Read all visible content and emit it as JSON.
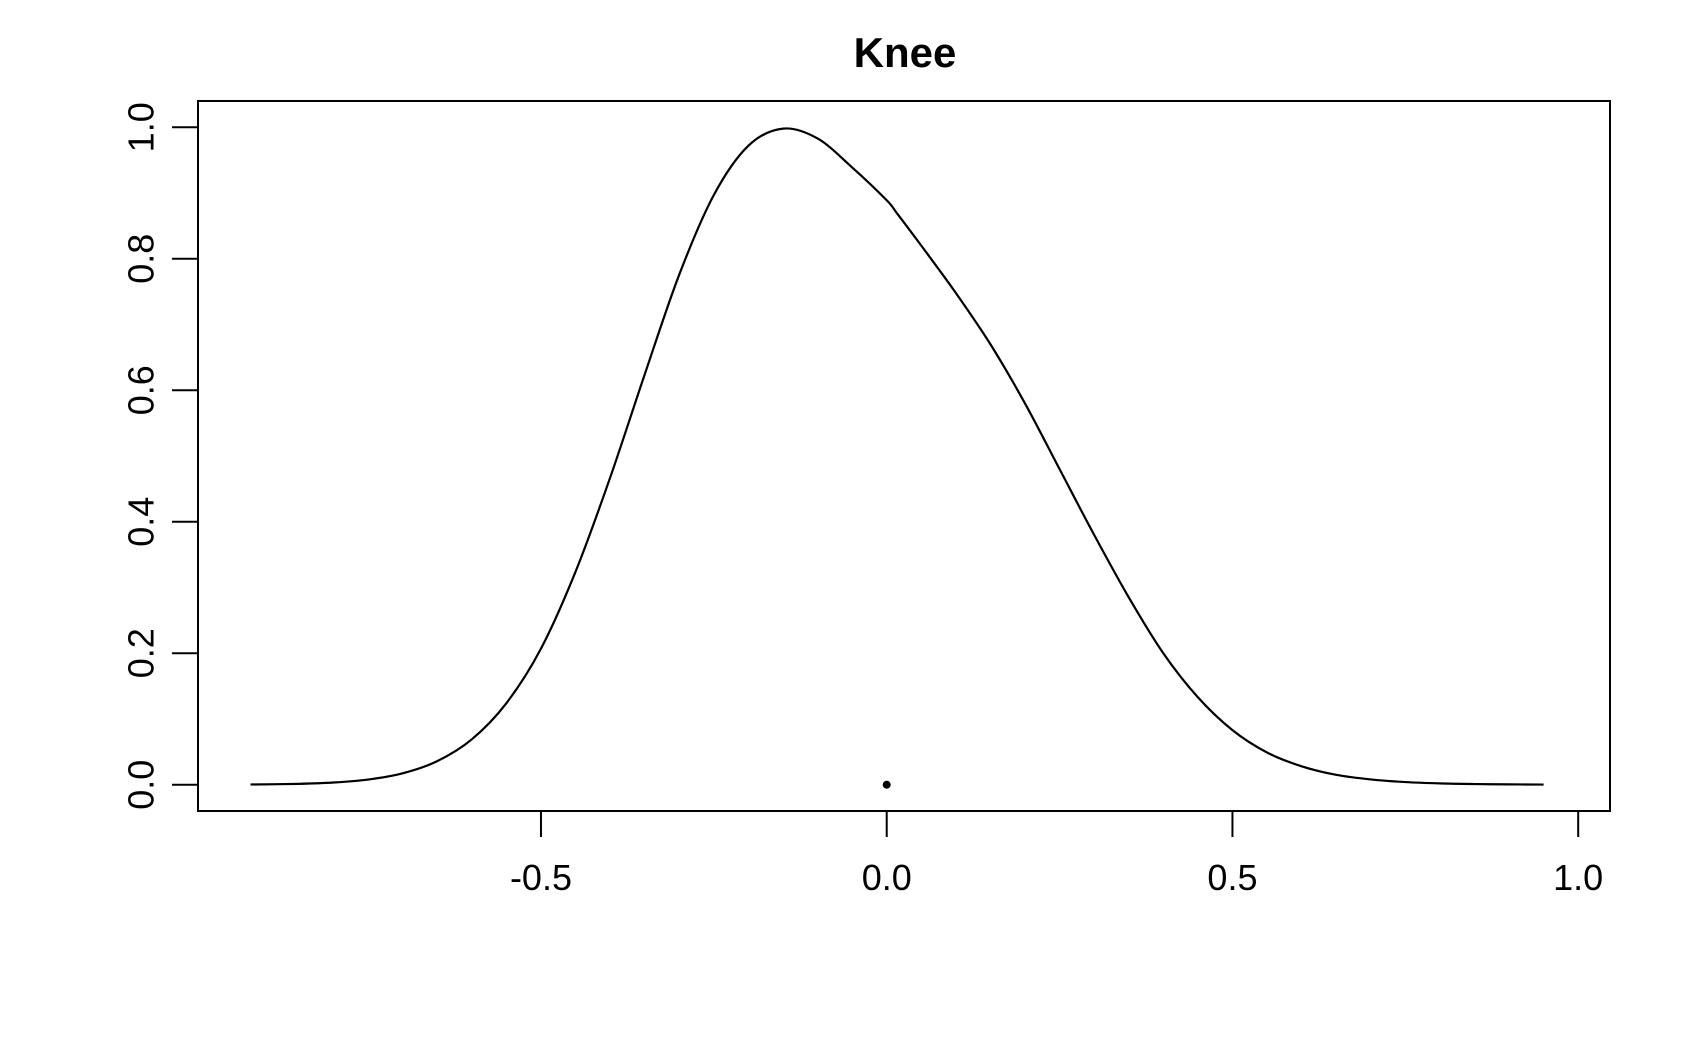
{
  "chart_data": {
    "type": "line",
    "title": "Knee",
    "xlabel": "",
    "ylabel": "",
    "xlim": [
      -0.996,
      1.046
    ],
    "ylim": [
      -0.04,
      1.04
    ],
    "x_ticks": [
      -0.5,
      0.0,
      0.5,
      1.0
    ],
    "x_tick_labels": [
      "-0.5",
      "0.0",
      "0.5",
      "1.0"
    ],
    "y_ticks": [
      0.0,
      0.2,
      0.4,
      0.6,
      0.8,
      1.0
    ],
    "y_tick_labels": [
      "0.0",
      "0.2",
      "0.4",
      "0.6",
      "0.8",
      "1.0"
    ],
    "grid": false,
    "series": [
      {
        "x": [
          -0.92,
          -0.85,
          -0.8,
          -0.75,
          -0.7,
          -0.65,
          -0.6,
          -0.55,
          -0.5,
          -0.45,
          -0.4,
          -0.35,
          -0.3,
          -0.25,
          -0.2,
          -0.15,
          -0.1,
          -0.05,
          0.0,
          0.015,
          0.05,
          0.1,
          0.15,
          0.2,
          0.25,
          0.3,
          0.35,
          0.4,
          0.45,
          0.5,
          0.55,
          0.6,
          0.65,
          0.7,
          0.75,
          0.8,
          0.85,
          0.9,
          0.95
        ],
        "y": [
          0.0003,
          0.0013,
          0.0033,
          0.0078,
          0.0173,
          0.0358,
          0.069,
          0.124,
          0.207,
          0.324,
          0.467,
          0.624,
          0.776,
          0.897,
          0.972,
          0.998,
          0.983,
          0.939,
          0.889,
          0.869,
          0.82,
          0.748,
          0.67,
          0.58,
          0.48,
          0.38,
          0.285,
          0.2,
          0.133,
          0.083,
          0.049,
          0.028,
          0.015,
          0.008,
          0.004,
          0.002,
          0.001,
          0.0005,
          0.0002
        ]
      }
    ],
    "points": [
      {
        "x": 0.0,
        "y": 0.0
      }
    ]
  }
}
